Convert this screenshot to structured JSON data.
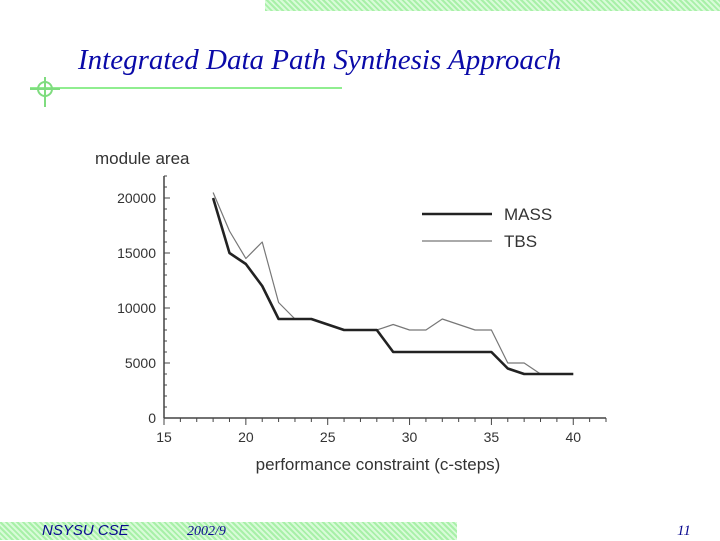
{
  "slide": {
    "title": "Integrated Data Path Synthesis Approach",
    "footer_org": "NSYSU CSE",
    "footer_date": "2002/9",
    "page_number": "11",
    "accent_color": "#0a0aa8",
    "band_color": "#a8f0a8"
  },
  "chart_data": {
    "type": "line",
    "title": "",
    "xlabel": "performance constraint (c-steps)",
    "ylabel": "module area",
    "xlim": [
      15,
      42
    ],
    "ylim": [
      0,
      22000
    ],
    "xticks": [
      15,
      20,
      25,
      30,
      35,
      40
    ],
    "yticks": [
      0,
      5000,
      10000,
      15000,
      20000
    ],
    "legend_position": "top-right",
    "series": [
      {
        "name": "MASS",
        "color": "#222222",
        "x": [
          18,
          19,
          20,
          21,
          22,
          23,
          24,
          25,
          26,
          27,
          28,
          29,
          30,
          31,
          32,
          33,
          34,
          35,
          36,
          37,
          38,
          39,
          40
        ],
        "y": [
          20000,
          15000,
          14000,
          12000,
          9000,
          9000,
          9000,
          8500,
          8000,
          8000,
          8000,
          6000,
          6000,
          6000,
          6000,
          6000,
          6000,
          6000,
          4500,
          4000,
          4000,
          4000,
          4000
        ]
      },
      {
        "name": "TBS",
        "color": "#777777",
        "x": [
          18,
          19,
          20,
          21,
          22,
          23,
          24,
          25,
          26,
          27,
          28,
          29,
          30,
          31,
          32,
          33,
          34,
          35,
          36,
          37,
          38,
          39,
          40
        ],
        "y": [
          20500,
          17000,
          14500,
          16000,
          10500,
          9000,
          9000,
          8500,
          8000,
          8000,
          8000,
          8500,
          8000,
          8000,
          9000,
          8500,
          8000,
          8000,
          5000,
          5000,
          4000,
          4000,
          4000
        ]
      }
    ]
  }
}
